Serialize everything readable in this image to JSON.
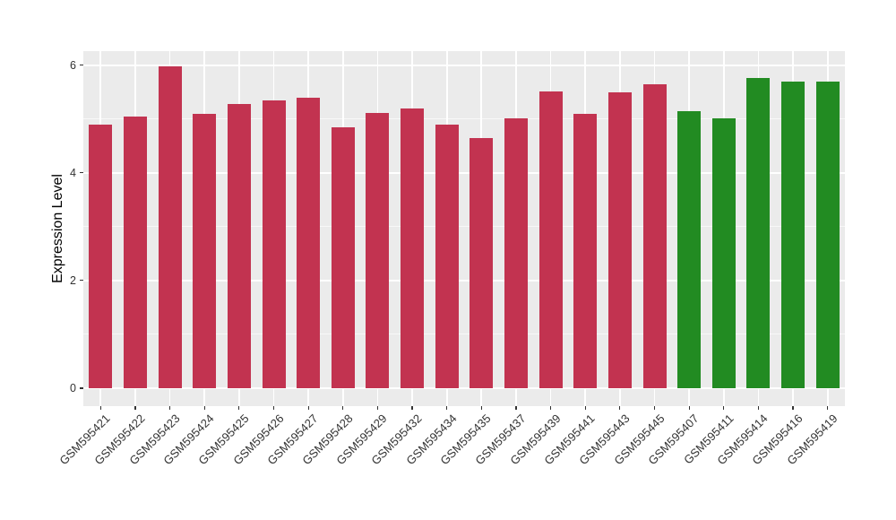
{
  "chart_data": {
    "type": "bar",
    "title": "",
    "xlabel": "",
    "ylabel": "Expression Level",
    "categories": [
      "GSM595421",
      "GSM595422",
      "GSM595423",
      "GSM595424",
      "GSM595425",
      "GSM595426",
      "GSM595427",
      "GSM595428",
      "GSM595429",
      "GSM595432",
      "GSM595434",
      "GSM595435",
      "GSM595437",
      "GSM595439",
      "GSM595441",
      "GSM595443",
      "GSM595445",
      "GSM595407",
      "GSM595411",
      "GSM595414",
      "GSM595416",
      "GSM595419"
    ],
    "series": [
      {
        "name": "Expression Level",
        "values": [
          4.89,
          5.04,
          5.98,
          5.09,
          5.28,
          5.35,
          5.4,
          4.85,
          5.11,
          5.19,
          4.9,
          4.64,
          5.02,
          5.52,
          5.09,
          5.5,
          5.64,
          5.15,
          5.02,
          5.76,
          5.7,
          5.7
        ]
      }
    ],
    "bar_groups": [
      {
        "name": "group-red",
        "color": "#C23350",
        "count": 17
      },
      {
        "name": "group-green",
        "color": "#228B22",
        "count": 5
      }
    ],
    "yticks": [
      0,
      2,
      4,
      6
    ],
    "yticks_minor": [
      1,
      3,
      5
    ],
    "ylim": [
      0,
      6.25
    ],
    "grid": "on",
    "legend": "none",
    "panel_bg": "#EBEBEB",
    "grid_color": "#FFFFFF",
    "tick_label_color": "#333333",
    "x_label_rotation": -45
  }
}
